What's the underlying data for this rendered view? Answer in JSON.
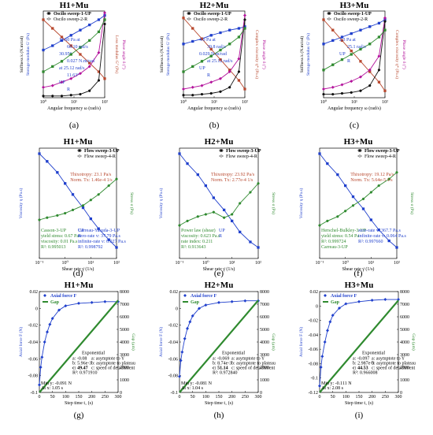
{
  "chart_data": [
    {
      "panel": "(a)",
      "type": "line",
      "title": "H1+Mu",
      "xlabel": "Angular frequency  ω  (rad/s)",
      "ylabel_left": "Storage modulus  G' (Pa)",
      "ylabel_left2": "Stiffness  k (N.m/rad)",
      "ylabel_right": "Loss modulus  G'' (Pa)",
      "ylabel_right2": "Phase angle  δ (°)",
      "xscale": "log",
      "xlim": [
        1,
        100
      ],
      "yscale": "log",
      "legend": [
        "Oscilo sweep-1-UP",
        "Oscilo sweep-2-R"
      ],
      "legend_position": "top",
      "annotations": [
        "11.60 Pa at",
        "60.10 rad/s",
        "30.95°",
        "0.027 N.m/rad",
        "at 25.12 rad/s",
        "11.63°",
        "UP",
        "R"
      ],
      "series": [
        {
          "name": "G' UP",
          "color": "#1f3fcc",
          "x": [
            1,
            2,
            4,
            8,
            16,
            32,
            64,
            100
          ],
          "y": [
            0.55,
            0.6,
            0.66,
            0.72,
            0.78,
            0.84,
            0.9,
            0.95
          ]
        },
        {
          "name": "η* UP",
          "color": "#b8482e",
          "x": [
            1,
            2,
            4,
            8,
            16,
            32,
            64,
            100
          ],
          "y": [
            0.9,
            0.8,
            0.7,
            0.6,
            0.5,
            0.4,
            0.3,
            0.22
          ]
        },
        {
          "name": "δ UP",
          "color": "#b3129b",
          "x": [
            1,
            2,
            4,
            8,
            16,
            32,
            64,
            100
          ],
          "y": [
            0.12,
            0.14,
            0.18,
            0.22,
            0.28,
            0.36,
            0.52,
            0.98
          ]
        },
        {
          "name": "k UP",
          "color": "#111111",
          "x": [
            1,
            2,
            4,
            8,
            16,
            32,
            64,
            100
          ],
          "y": [
            0.02,
            0.02,
            0.02,
            0.03,
            0.04,
            0.08,
            0.2,
            0.85
          ]
        },
        {
          "name": "G'' UP",
          "color": "#2f8a2f",
          "x": [
            1,
            2,
            4,
            8,
            16,
            32,
            64,
            100
          ],
          "y": [
            0.3,
            0.36,
            0.42,
            0.5,
            0.58,
            0.66,
            0.76,
            0.9
          ]
        }
      ]
    },
    {
      "panel": "(b)",
      "type": "line",
      "title": "H2+Mu",
      "xlabel": "Angular frequency  ω  (rad/s)",
      "ylabel_left": "Storage modulus  G' (Pa)",
      "ylabel_left2": "Stiffness  k (N.m/rad)",
      "ylabel_right": "Complex viscosity  η* (Pa.s)",
      "ylabel_right2": "Phase angle  δ (°)",
      "xscale": "log",
      "xlim": [
        1,
        100
      ],
      "yscale": "log",
      "legend": [
        "Oscilo sweep-1-UP",
        "Oscilo sweep-2-R"
      ],
      "legend_position": "top",
      "annotations": [
        "4.0 Pa at",
        "39.8 rad/s",
        "0.029 N.m/rad",
        "at 25.12 rad/s",
        "UP",
        "R"
      ],
      "series": [
        {
          "name": "G' UP",
          "color": "#1f3fcc",
          "x": [
            1,
            2,
            4,
            8,
            16,
            32,
            64,
            100
          ],
          "y": [
            0.62,
            0.65,
            0.68,
            0.72,
            0.75,
            0.78,
            0.8,
            0.82
          ]
        },
        {
          "name": "η* UP",
          "color": "#b8482e",
          "x": [
            1,
            2,
            4,
            8,
            16,
            32,
            64,
            100
          ],
          "y": [
            0.92,
            0.8,
            0.68,
            0.56,
            0.44,
            0.32,
            0.2,
            0.1
          ]
        },
        {
          "name": "δ UP",
          "color": "#b3129b",
          "x": [
            1,
            2,
            4,
            8,
            16,
            32,
            64,
            100
          ],
          "y": [
            0.1,
            0.12,
            0.14,
            0.18,
            0.22,
            0.3,
            0.45,
            0.95
          ]
        },
        {
          "name": "k UP",
          "color": "#111111",
          "x": [
            1,
            2,
            4,
            8,
            16,
            32,
            64,
            100
          ],
          "y": [
            0.03,
            0.03,
            0.04,
            0.05,
            0.07,
            0.12,
            0.3,
            0.9
          ]
        },
        {
          "name": "G'' UP",
          "color": "#2f8a2f",
          "x": [
            1,
            2,
            4,
            8,
            16,
            32,
            64,
            100
          ],
          "y": [
            0.3,
            0.36,
            0.42,
            0.48,
            0.55,
            0.62,
            0.7,
            0.8
          ]
        }
      ]
    },
    {
      "panel": "(c)",
      "type": "line",
      "title": "H3+Mu",
      "xlabel": "Angular frequency  ω  (rad/s)",
      "ylabel_left": "Storage modulus  G' (Pa)",
      "ylabel_left2": "Stiffness  k (N.m/rad)",
      "ylabel_right": "Complex viscosity  η* (Pa.s)",
      "ylabel_right2": "Phase angle  δ (°)",
      "xscale": "log",
      "xlim": [
        1,
        100
      ],
      "yscale": "log",
      "legend": [
        "Oscilo sweep-1-UP",
        "Oscilo sweep-2-R"
      ],
      "legend_position": "top",
      "annotations": [
        "2.3 Pa at",
        "25.1 rad/s",
        "UP",
        "R"
      ],
      "series": [
        {
          "name": "G' UP",
          "color": "#1f3fcc",
          "x": [
            1,
            2,
            4,
            8,
            16,
            32,
            64,
            100
          ],
          "y": [
            0.62,
            0.66,
            0.7,
            0.74,
            0.78,
            0.82,
            0.86,
            0.9
          ]
        },
        {
          "name": "η* UP",
          "color": "#b8482e",
          "x": [
            1,
            2,
            4,
            8,
            16,
            32,
            64,
            100
          ],
          "y": [
            0.9,
            0.78,
            0.66,
            0.54,
            0.42,
            0.3,
            0.18,
            0.08
          ]
        },
        {
          "name": "δ UP",
          "color": "#b3129b",
          "x": [
            1,
            2,
            4,
            8,
            16,
            32,
            64,
            100
          ],
          "y": [
            0.1,
            0.12,
            0.15,
            0.19,
            0.24,
            0.32,
            0.48,
            0.92
          ]
        },
        {
          "name": "k UP",
          "color": "#111111",
          "x": [
            1,
            2,
            4,
            8,
            16,
            32,
            64,
            100
          ],
          "y": [
            0.04,
            0.04,
            0.05,
            0.06,
            0.08,
            0.14,
            0.32,
            0.88
          ]
        },
        {
          "name": "G'' UP",
          "color": "#2f8a2f",
          "x": [
            1,
            2,
            4,
            8,
            16,
            32,
            64,
            100
          ],
          "y": [
            0.32,
            0.38,
            0.44,
            0.5,
            0.56,
            0.62,
            0.7,
            0.78
          ]
        }
      ]
    },
    {
      "panel": "(d)",
      "type": "line",
      "title": "H1+Mu",
      "xlabel": "Shear rate  γ̇  (1/s)",
      "ylabel_left": "Viscosity  η (Pa.s)",
      "ylabel_right": "Stress  σ (Pa)",
      "xscale": "log",
      "xlim": [
        0.1,
        100
      ],
      "xticks": [
        "10⁻¹",
        "10⁰",
        "10¹",
        "10²"
      ],
      "legend": [
        "Flow sweep-3-UP",
        "Flow sweep-4-R"
      ],
      "legend_position": "top",
      "annotations": [
        "Thixotropy: 23.1 Pa/s",
        "Norm. Tx: 1.46e-4 1/s",
        "Casson-3-UP",
        "yield stress: 0.67 Pa",
        "viscosity: 0.01 Pa.s",
        "R²: 0.995013",
        "Carreau-Yasuda-3-UP",
        "zero-rate v: 37.79 Pa.s",
        "infinite-rate v: 0.027 Pa.s",
        "R²: 0.998792",
        "UP",
        "R"
      ],
      "series": [
        {
          "name": "Flow sweep-3-UP η",
          "color": "#1f3fcc",
          "x": [
            0.1,
            0.2,
            0.5,
            1,
            2,
            5,
            10,
            20,
            50,
            100
          ],
          "y": [
            0.95,
            0.88,
            0.78,
            0.68,
            0.58,
            0.46,
            0.36,
            0.27,
            0.17,
            0.1
          ]
        },
        {
          "name": "Flow sweep-3-UP σ",
          "color": "#2f8a2f",
          "x": [
            0.1,
            0.2,
            0.5,
            1,
            2,
            5,
            10,
            20,
            50,
            100
          ],
          "y": [
            0.35,
            0.37,
            0.39,
            0.41,
            0.44,
            0.48,
            0.53,
            0.58,
            0.66,
            0.72
          ]
        }
      ]
    },
    {
      "panel": "(e)",
      "type": "line",
      "title": "H2+Mu",
      "xlabel": "Shear rate  γ̇  (1/s)",
      "ylabel_left": "Viscosity  η (Pa.s)",
      "ylabel_right": "Stress  σ (Pa)",
      "xscale": "log",
      "xlim": [
        0.1,
        100
      ],
      "xticks": [
        "10⁻¹",
        "10⁰",
        "10¹",
        "10²"
      ],
      "legend": [
        "Flow sweep-3-UP",
        "Flow sweep-4-R"
      ],
      "legend_position": "top",
      "annotations": [
        "Thixotropy: 23.92 Pa/s",
        "Norm. Tx: 2.77e-4 1/s",
        "Power law (shear)",
        "viscosity: 0.623 Pa.s",
        "rate index: 0.211",
        "R²: 0.913643",
        "UP",
        "R"
      ],
      "series": [
        {
          "name": "Flow sweep-3-UP η",
          "color": "#1f3fcc",
          "x": [
            0.1,
            0.2,
            0.5,
            1,
            2,
            5,
            10,
            20,
            50,
            100
          ],
          "y": [
            0.95,
            0.86,
            0.76,
            0.66,
            0.55,
            0.44,
            0.34,
            0.24,
            0.15,
            0.1
          ]
        },
        {
          "name": "Flow sweep-3-UP σ",
          "color": "#2f8a2f",
          "x": [
            0.1,
            0.2,
            0.5,
            1,
            2,
            5,
            10,
            20,
            50,
            100
          ],
          "y": [
            0.3,
            0.34,
            0.38,
            0.4,
            0.42,
            0.37,
            0.4,
            0.5,
            0.6,
            0.68
          ]
        }
      ]
    },
    {
      "panel": "(f)",
      "type": "line",
      "title": "H3+Mu",
      "xlabel": "Shear rate  γ̇  (1/s)",
      "ylabel_left": "Viscosity  η (Pa.s)",
      "ylabel_right": "Stress  σ (Pa)",
      "xscale": "log",
      "xlim": [
        0.1,
        100
      ],
      "xticks": [
        "10⁻¹",
        "10⁰",
        "10¹",
        "10²"
      ],
      "legend": [
        "Flow sweep-3-UP",
        "Flow sweep-4-R"
      ],
      "legend_position": "top",
      "annotations": [
        "Thixotropy: 19.12 Pa/s",
        "Norm. Tx: 5.64e-5 1/s",
        "Herschel-Bulkley-3-UP",
        "yield stress: 0.54 Pa",
        "R²: 0.999724",
        "Carreau-3-UP",
        "zero-rate v: 367.7 Pa.s",
        "infinite-rate v: 0.064 Pa.s",
        "R²: 0.997660"
      ],
      "series": [
        {
          "name": "Flow sweep-3-UP η",
          "color": "#1f3fcc",
          "x": [
            0.1,
            0.2,
            0.5,
            1,
            2,
            5,
            10,
            20,
            50,
            100
          ],
          "y": [
            0.95,
            0.86,
            0.76,
            0.66,
            0.56,
            0.45,
            0.35,
            0.26,
            0.16,
            0.1
          ]
        },
        {
          "name": "Flow sweep-3-UP σ",
          "color": "#2f8a2f",
          "x": [
            0.1,
            0.2,
            0.5,
            1,
            2,
            5,
            10,
            20,
            50,
            100
          ],
          "y": [
            0.3,
            0.34,
            0.38,
            0.43,
            0.48,
            0.54,
            0.6,
            0.66,
            0.72,
            0.78
          ]
        }
      ]
    },
    {
      "panel": "(g)",
      "type": "line",
      "title": "H1+Mu",
      "xlabel": "Step time  t₁  (s)",
      "ylabel_left": "Axial force  F  (N)",
      "ylabel_right": "Gap  (μm)",
      "xlim": [
        0,
        300
      ],
      "xticks": [
        0,
        50,
        100,
        150,
        200,
        250,
        300
      ],
      "ylim_left": [
        -0.1,
        0.02
      ],
      "yticks_left": [
        "0.02",
        "0",
        "-0.02",
        "-0.04",
        "-0.06",
        "-0.08",
        "-0.1"
      ],
      "ylim_right": [
        0,
        8000
      ],
      "yticks_right": [
        "8000",
        "7000",
        "6000",
        "5000",
        "4000",
        "3000",
        "2000",
        "1000",
        "0"
      ],
      "legend": [
        "Axial force F",
        "Gap"
      ],
      "legend_position": "top-left",
      "annotations": [
        "Exponential",
        "a: -0.08",
        "a: asymptote to Y",
        "b: 5.96e-3",
        "b: asymptote to plateau",
        "c: 49.47",
        "c: speed of detachment",
        "R²: 0.971910",
        "Min y: -0.091 N",
        "At x: 1.05 s"
      ],
      "series": [
        {
          "name": "Axial force F",
          "color": "#1f3fcc",
          "x": [
            0,
            5,
            10,
            20,
            30,
            40,
            50,
            75,
            100,
            150,
            200,
            250,
            300
          ],
          "y": [
            -0.091,
            -0.07,
            -0.058,
            -0.04,
            -0.028,
            -0.019,
            -0.012,
            -0.002,
            0.003,
            0.006,
            0.007,
            0.008,
            0.008
          ]
        },
        {
          "name": "Gap",
          "color": "#2f8a2f",
          "x": [
            0,
            300
          ],
          "y": [
            0,
            7300
          ]
        }
      ]
    },
    {
      "panel": "(h)",
      "type": "line",
      "title": "H2+Mu",
      "xlabel": "Step time  t₁  (s)",
      "ylabel_left": "Axial force  F  (N)",
      "ylabel_right": "Gap  (μm)",
      "xlim": [
        0,
        300
      ],
      "xticks": [
        0,
        50,
        100,
        150,
        200,
        250,
        300
      ],
      "ylim_left": [
        -0.1,
        0.02
      ],
      "yticks_left": [
        "0.02",
        "0",
        "-0.02",
        "-0.04",
        "-0.06",
        "-0.08",
        "-0.1"
      ],
      "ylim_right": [
        0,
        8000
      ],
      "yticks_right": [
        "8000",
        "7000",
        "6000",
        "5000",
        "4000",
        "3000",
        "2000",
        "1000",
        "0"
      ],
      "legend": [
        "Axial force F",
        "Gap"
      ],
      "legend_position": "top-left",
      "annotations": [
        "Exponential",
        "a: -0.069",
        "a: asymptote to Y",
        "b: 8.74e-3",
        "b: asymptote to plateau",
        "c: 51.14",
        "c: speed of detachment",
        "R²: 0.972840",
        "Min y: -0.081 N",
        "At x: 1.04 s"
      ],
      "series": [
        {
          "name": "Axial force F",
          "color": "#1f3fcc",
          "x": [
            0,
            5,
            10,
            20,
            30,
            40,
            50,
            75,
            100,
            150,
            200,
            250,
            300
          ],
          "y": [
            -0.081,
            -0.062,
            -0.052,
            -0.036,
            -0.024,
            -0.016,
            -0.009,
            0.0,
            0.004,
            0.007,
            0.008,
            0.009,
            0.009
          ]
        },
        {
          "name": "Gap",
          "color": "#2f8a2f",
          "x": [
            0,
            300
          ],
          "y": [
            0,
            7300
          ]
        }
      ]
    },
    {
      "panel": "(i)",
      "type": "line",
      "title": "H3+Mu",
      "xlabel": "Step time  t₁  (s)",
      "ylabel_left": "Axial force  F  (N)",
      "ylabel_right": "Gap  (μm)",
      "xlim": [
        0,
        300
      ],
      "xticks": [
        0,
        50,
        100,
        150,
        200,
        250,
        300
      ],
      "ylim_left": [
        -0.12,
        0.02
      ],
      "yticks_left": [
        "0.02",
        "0",
        "-0.02",
        "-0.04",
        "-0.06",
        "-0.08",
        "-0.1",
        "-0.12"
      ],
      "ylim_right": [
        0,
        8000
      ],
      "yticks_right": [
        "8000",
        "7000",
        "6000",
        "5000",
        "4000",
        "3000",
        "2000",
        "1000",
        "0"
      ],
      "legend": [
        "Axial force F",
        "Gap"
      ],
      "legend_position": "top-left",
      "annotations": [
        "Exponential",
        "a: -0.097",
        "a: asymptote to Y",
        "b: 2.987e-3",
        "b: asymptote to plateau",
        "c: 44.53",
        "c: speed of detachment",
        "R²: 0.966008",
        "Min y: -0.111 N",
        "At x: 2.08 s"
      ],
      "series": [
        {
          "name": "Axial force F",
          "color": "#1f3fcc",
          "x": [
            0,
            5,
            10,
            20,
            30,
            40,
            50,
            75,
            100,
            150,
            200,
            250,
            300
          ],
          "y": [
            -0.111,
            -0.085,
            -0.07,
            -0.05,
            -0.034,
            -0.022,
            -0.013,
            -0.003,
            0.003,
            0.006,
            0.008,
            0.009,
            0.009
          ]
        },
        {
          "name": "Gap",
          "color": "#2f8a2f",
          "x": [
            0,
            300
          ],
          "y": [
            0,
            7300
          ]
        }
      ]
    }
  ]
}
